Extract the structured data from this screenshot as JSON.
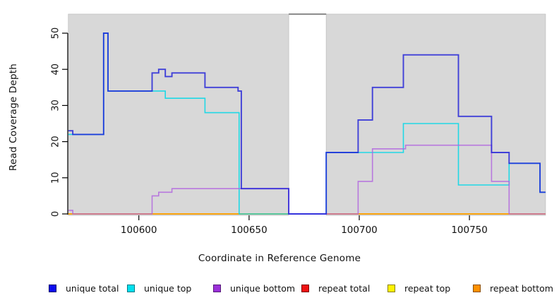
{
  "axes": {
    "x_label": "Coordinate in Reference Genome",
    "y_label": "Read Coverage Depth"
  },
  "chart_data": {
    "type": "line",
    "subtype": "step-after-coverage-plot",
    "title": "",
    "xlabel": "Coordinate in Reference Genome",
    "ylabel": "Read Coverage Depth",
    "xlim": [
      100568,
      100784.5
    ],
    "ylim": [
      0,
      55.3
    ],
    "x_ticks": [
      100600,
      100650,
      100700,
      100750
    ],
    "y_ticks": [
      0,
      10,
      20,
      30,
      40,
      50
    ],
    "grid": false,
    "legend_position": "bottom",
    "background_panels": [
      {
        "from": 100568,
        "to": 100668,
        "color": "#d8d8d8"
      },
      {
        "from": 100685,
        "to": 100784.5,
        "color": "#d8d8d8"
      }
    ],
    "gap_region": {
      "from": 100668,
      "to": 100685,
      "note": "white vertical band, no shading; thin gray connector line at top"
    },
    "series": [
      {
        "name": "unique total",
        "color": "#1a1ad8",
        "opacity": 0.8,
        "width": 1.9,
        "segments": [
          {
            "steps": [
              [
                100568,
                23
              ],
              [
                100570,
                22
              ],
              [
                100584,
                50
              ],
              [
                100586,
                34
              ],
              [
                100606,
                39
              ],
              [
                100609,
                40
              ],
              [
                100612,
                38
              ],
              [
                100615,
                39
              ],
              [
                100630,
                35
              ],
              [
                100645,
                34
              ],
              [
                100646.5,
                7
              ],
              [
                100668,
                0
              ],
              [
                100685,
                17
              ],
              [
                100699.5,
                26
              ],
              [
                100706,
                35
              ],
              [
                100720,
                44
              ],
              [
                100745,
                27
              ],
              [
                100760,
                17
              ],
              [
                100768,
                14
              ],
              [
                100782,
                6
              ]
            ],
            "end": 100784.5
          }
        ]
      },
      {
        "name": "unique top",
        "color": "#00d8e8",
        "opacity": 0.85,
        "width": 1.6,
        "segments": [
          {
            "steps": [
              [
                100568,
                22
              ],
              [
                100584,
                50
              ],
              [
                100586,
                34
              ],
              [
                100612,
                32
              ],
              [
                100630,
                28
              ],
              [
                100645.5,
                0
              ],
              [
                100685,
                17
              ],
              [
                100720,
                25
              ],
              [
                100745,
                8
              ],
              [
                100768,
                14
              ],
              [
                100782,
                6
              ]
            ],
            "end": 100784.5
          }
        ]
      },
      {
        "name": "unique bottom",
        "color": "#b060e0",
        "opacity": 0.8,
        "width": 1.6,
        "segments": [
          {
            "steps": [
              [
                100568,
                1
              ],
              [
                100570,
                0
              ],
              [
                100606,
                5
              ],
              [
                100609,
                6
              ],
              [
                100615,
                7
              ],
              [
                100668,
                0
              ],
              [
                100699.5,
                9
              ],
              [
                100706,
                18
              ],
              [
                100721,
                19
              ],
              [
                100760,
                9
              ],
              [
                100768,
                0
              ]
            ],
            "end": 100784.5
          }
        ]
      },
      {
        "name": "repeat total",
        "color": "#e8334a",
        "opacity": 0.8,
        "width": 1.5,
        "segments": [
          {
            "steps": [
              [
                100568,
                0
              ]
            ],
            "end": 100668
          },
          {
            "steps": [
              [
                100685,
                0
              ]
            ],
            "end": 100784.5
          }
        ]
      },
      {
        "name": "repeat top",
        "color": "#f0e200",
        "opacity": 0.9,
        "width": 1.5,
        "segments": [
          {
            "steps": [
              [
                100568,
                0
              ]
            ],
            "end": 100668
          },
          {
            "steps": [
              [
                100685,
                0
              ]
            ],
            "end": 100784.5
          }
        ]
      },
      {
        "name": "repeat bottom",
        "color": "#ff9d00",
        "opacity": 0.9,
        "width": 1.8,
        "segments": [
          {
            "steps": [
              [
                100568,
                0
              ]
            ],
            "end": 100668
          },
          {
            "steps": [
              [
                100685,
                0
              ]
            ],
            "end": 100784.5
          }
        ]
      }
    ]
  },
  "legend": {
    "items": [
      {
        "label": "unique total",
        "swatch_fill": "#0b0bee",
        "swatch_border": "#000070"
      },
      {
        "label": "unique top",
        "swatch_fill": "#00e0ee",
        "swatch_border": "#007a85"
      },
      {
        "label": "unique bottom",
        "swatch_fill": "#9b30d9",
        "swatch_border": "#551a78"
      },
      {
        "label": "repeat total",
        "swatch_fill": "#ee1111",
        "swatch_border": "#7a0000"
      },
      {
        "label": "repeat top",
        "swatch_fill": "#fff200",
        "swatch_border": "#8a8000"
      },
      {
        "label": "repeat bottom",
        "swatch_fill": "#ff9100",
        "swatch_border": "#8a4d00"
      }
    ]
  }
}
